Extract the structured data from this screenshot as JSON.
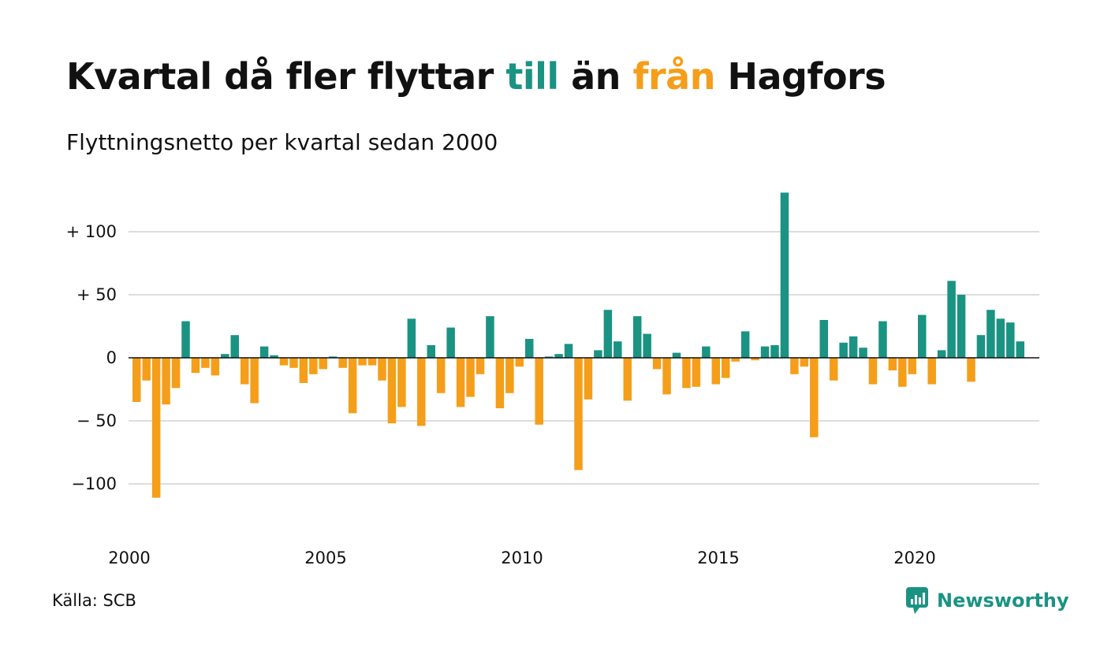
{
  "title": {
    "part1": "Kvartal då fler flyttar ",
    "highlight_in": "till",
    "part2": " än ",
    "highlight_out": "från",
    "part3": " Hagfors"
  },
  "subtitle": "Flyttningsnetto per kvartal sedan 2000",
  "source": "Källa: SCB",
  "logo": {
    "text": "Newsworthy",
    "icon": "newsworthy-logo-icon"
  },
  "colors": {
    "positive": "#1a9383",
    "negative": "#f59e1a",
    "grid": "#dddddd",
    "baseline": "#111111"
  },
  "chart_data": {
    "type": "bar",
    "title": "Kvartal då fler flyttar till än från Hagfors",
    "subtitle": "Flyttningsnetto per kvartal sedan 2000",
    "xlabel": "",
    "ylabel": "",
    "grid": true,
    "x_start_year": 2000,
    "x_ticks": [
      "2000",
      "2005",
      "2010",
      "2015",
      "2020"
    ],
    "y_ticks": [
      {
        "value": 100,
        "label": "+ 100"
      },
      {
        "value": 50,
        "label": "+  50"
      },
      {
        "value": 0,
        "label": "0"
      },
      {
        "value": -50,
        "label": "− 50"
      },
      {
        "value": -100,
        "label": "−100"
      }
    ],
    "ylim": [
      -125,
      135
    ],
    "values": [
      -35,
      -18,
      -111,
      -37,
      -24,
      29,
      -12,
      -8,
      -14,
      3,
      18,
      -21,
      -36,
      9,
      2,
      -6,
      -8,
      -20,
      -13,
      -9,
      1,
      -8,
      -44,
      -6,
      -6,
      -18,
      -52,
      -39,
      31,
      -54,
      10,
      -28,
      24,
      -39,
      -31,
      -13,
      33,
      -40,
      -28,
      -7,
      15,
      -53,
      1,
      3,
      11,
      -89,
      -33,
      6,
      38,
      13,
      -34,
      33,
      19,
      -9,
      -29,
      4,
      -24,
      -23,
      9,
      -21,
      -16,
      -3,
      21,
      -2,
      9,
      10,
      131,
      -13,
      -7,
      -63,
      30,
      -18,
      12,
      17,
      8,
      -21,
      29,
      -10,
      -23,
      -13,
      34,
      -21,
      6,
      61,
      50,
      -19,
      18,
      38,
      31,
      28,
      13
    ]
  }
}
